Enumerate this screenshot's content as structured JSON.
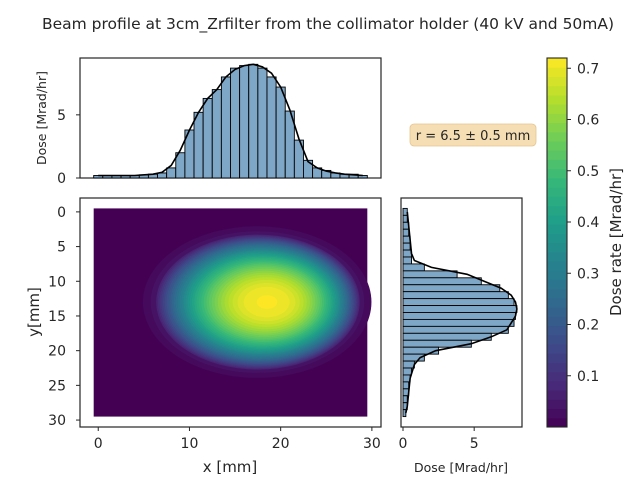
{
  "chart_data": {
    "type": "heatmap",
    "title": "Beam profile at 3cm_Zrfilter from the collimator holder (40 kV and 50mA)",
    "colormap": "viridis",
    "annotation": "r = 6.5 ± 0.5 mm",
    "annotation_bg": "#f5deb3",
    "heatmap": {
      "xlabel": "x [mm]",
      "ylabel": "y[mm]",
      "xlim": [
        -2,
        31
      ],
      "ylim": [
        31,
        -2
      ],
      "x_extent": [
        -0.5,
        29.5
      ],
      "y_extent": [
        -0.5,
        29.5
      ],
      "xticks": [
        "0",
        "10",
        "20",
        "30"
      ],
      "yticks": [
        "0",
        "5",
        "10",
        "15",
        "20",
        "25",
        "30"
      ],
      "center": [
        17.4,
        13.0
      ],
      "peak_center": [
        18.5,
        13.0
      ],
      "peak": 0.72
    },
    "top_histogram": {
      "ylabel": "Dose [Mrad/hr]",
      "yticks": [
        "0",
        "5"
      ],
      "ylim": [
        0,
        9.5
      ],
      "bar_color": "#7ea6c7",
      "x": [
        0,
        1,
        2,
        3,
        4,
        5,
        6,
        7,
        8,
        9,
        10,
        11,
        12,
        13,
        14,
        15,
        16,
        17,
        18,
        19,
        20,
        21,
        22,
        23,
        24,
        25,
        26,
        27,
        28,
        29
      ],
      "values": [
        0.2,
        0.2,
        0.2,
        0.2,
        0.2,
        0.25,
        0.3,
        0.4,
        0.8,
        2.0,
        3.8,
        5.2,
        6.3,
        7.0,
        8.0,
        8.7,
        8.9,
        9.0,
        8.7,
        8.0,
        7.2,
        5.3,
        3.0,
        1.4,
        0.8,
        0.6,
        0.4,
        0.3,
        0.3,
        0.2
      ],
      "curve": [
        [
          0,
          0.2
        ],
        [
          2,
          0.2
        ],
        [
          4,
          0.2
        ],
        [
          6,
          0.3
        ],
        [
          7,
          0.45
        ],
        [
          8,
          1.0
        ],
        [
          9,
          2.2
        ],
        [
          10,
          3.8
        ],
        [
          11,
          5.2
        ],
        [
          12,
          6.3
        ],
        [
          13,
          7.0
        ],
        [
          14,
          8.0
        ],
        [
          15,
          8.6
        ],
        [
          16,
          8.9
        ],
        [
          17,
          9.0
        ],
        [
          18,
          8.8
        ],
        [
          19,
          8.3
        ],
        [
          20,
          7.2
        ],
        [
          21,
          5.4
        ],
        [
          22,
          3.1
        ],
        [
          23,
          1.3
        ],
        [
          24,
          0.8
        ],
        [
          25,
          0.55
        ],
        [
          26,
          0.4
        ],
        [
          27,
          0.3
        ],
        [
          28,
          0.25
        ],
        [
          29,
          0.2
        ]
      ]
    },
    "right_histogram": {
      "xlabel": "Dose [Mrad/hr]",
      "xticks": [
        "0",
        "5"
      ],
      "xlim": [
        0,
        8.5
      ],
      "bar_color": "#7ea6c7",
      "y": [
        0,
        1,
        2,
        3,
        4,
        5,
        6,
        7,
        8,
        9,
        10,
        11,
        12,
        13,
        14,
        15,
        16,
        17,
        18,
        19,
        20,
        21,
        22,
        23,
        24,
        25,
        26,
        27,
        28,
        29
      ],
      "values": [
        0.3,
        0.3,
        0.4,
        0.4,
        0.5,
        0.5,
        0.6,
        0.6,
        1.5,
        3.8,
        5.5,
        6.8,
        7.4,
        7.8,
        8.0,
        7.9,
        7.8,
        7.4,
        6.2,
        4.8,
        2.5,
        1.5,
        0.8,
        0.6,
        0.5,
        0.4,
        0.4,
        0.3,
        0.3,
        0.2
      ],
      "curve": [
        [
          0,
          0.3
        ],
        [
          2,
          0.4
        ],
        [
          4,
          0.5
        ],
        [
          6,
          0.6
        ],
        [
          7,
          0.8
        ],
        [
          8,
          2.0
        ],
        [
          9,
          4.5
        ],
        [
          10,
          5.7
        ],
        [
          11,
          6.9
        ],
        [
          12,
          7.6
        ],
        [
          13,
          7.9
        ],
        [
          14,
          8.0
        ],
        [
          15,
          7.9
        ],
        [
          16,
          7.6
        ],
        [
          17,
          7.3
        ],
        [
          18,
          6.2
        ],
        [
          19,
          4.8
        ],
        [
          20,
          2.3
        ],
        [
          21,
          1.2
        ],
        [
          22,
          0.8
        ],
        [
          24,
          0.5
        ],
        [
          26,
          0.4
        ],
        [
          28,
          0.3
        ],
        [
          29,
          0.2
        ]
      ]
    },
    "colorbar": {
      "label": "Dose rate [Mrad/hr]",
      "ticks": [
        0.1,
        0.2,
        0.3,
        0.4,
        0.5,
        0.6,
        0.7
      ],
      "tick_labels": [
        "0.1",
        "0.2",
        "0.3",
        "0.4",
        "0.5",
        "0.6",
        "0.7"
      ],
      "range": [
        0.0,
        0.72
      ],
      "levels": 40
    }
  }
}
